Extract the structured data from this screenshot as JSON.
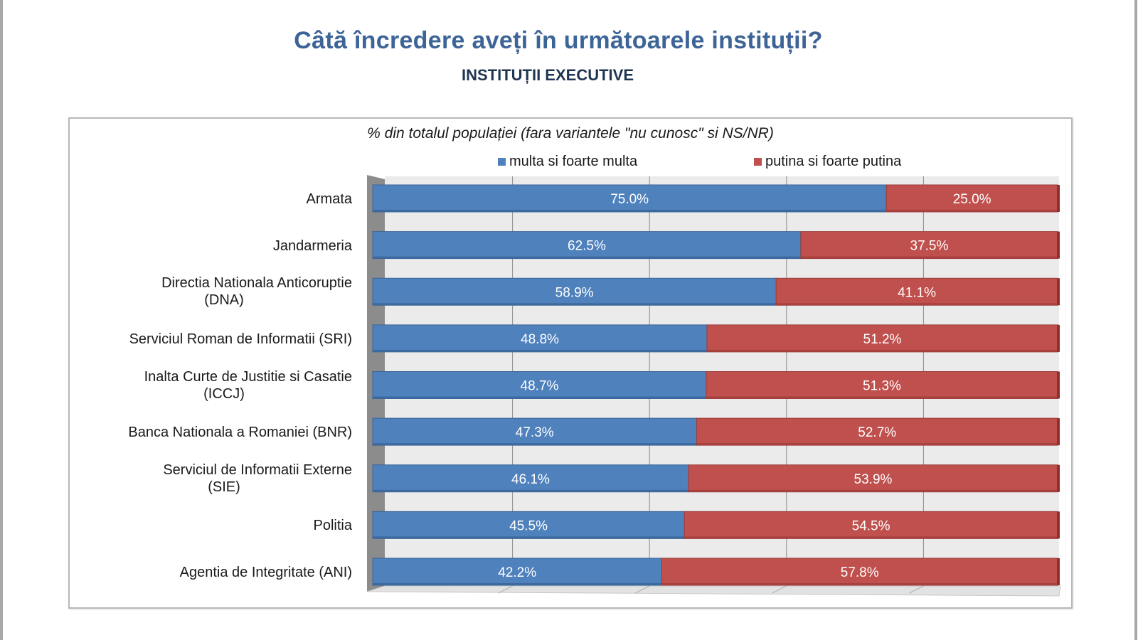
{
  "header": {
    "title": "Câtă încredere aveți în următoarele instituții?",
    "subtitle": "INSTITUȚII EXECUTIVE"
  },
  "chart_data": {
    "type": "bar",
    "orientation": "horizontal",
    "stacked": true,
    "stacked_percent": true,
    "title": "% din totalul populației (fara variantele \"nu cunosc\" si NS/NR)",
    "xlabel": "",
    "ylabel": "",
    "xlim": [
      0,
      100
    ],
    "grid": true,
    "legend_position": "top",
    "categories": [
      "Armata",
      "Jandarmeria",
      "Directia Nationala Anticoruptie (DNA)",
      "Serviciul Roman de Informatii (SRI)",
      "Inalta Curte de Justitie si Casatie (ICCJ)",
      "Banca Nationala a Romaniei (BNR)",
      "Serviciul de Informatii Externe (SIE)",
      "Politia",
      "Agentia de Integritate (ANI)"
    ],
    "category_lines": [
      [
        "Armata"
      ],
      [
        "Jandarmeria"
      ],
      [
        "Directia Nationala Anticoruptie",
        "(DNA)"
      ],
      [
        "Serviciul Roman de Informatii (SRI)"
      ],
      [
        "Inalta Curte de Justitie si Casatie",
        "(ICCJ)"
      ],
      [
        "Banca Nationala a Romaniei (BNR)"
      ],
      [
        "Serviciul de Informatii Externe",
        "(SIE)"
      ],
      [
        "Politia"
      ],
      [
        "Agentia de Integritate (ANI)"
      ]
    ],
    "series": [
      {
        "name": "multa si foarte multa",
        "color": "#4f81bd",
        "values": [
          75.0,
          62.5,
          58.9,
          48.8,
          48.7,
          47.3,
          46.1,
          45.5,
          42.2
        ],
        "labels": [
          "75.0%",
          "62.5%",
          "58.9%",
          "48.8%",
          "48.7%",
          "47.3%",
          "46.1%",
          "45.5%",
          "42.2%"
        ]
      },
      {
        "name": "putina si foarte putina",
        "color": "#c0504d",
        "values": [
          25.0,
          37.5,
          41.1,
          51.2,
          51.3,
          52.7,
          53.9,
          54.5,
          57.8
        ],
        "labels": [
          "25.0%",
          "37.5%",
          "41.1%",
          "51.2%",
          "51.3%",
          "52.7%",
          "53.9%",
          "54.5%",
          "57.8%"
        ]
      }
    ]
  },
  "colors": {
    "title": "#3d6496",
    "subtitle": "#1f3552",
    "plot_background": "#ebebeb",
    "wall": "#8c8c8c",
    "gridline": "#8a8a8a"
  }
}
